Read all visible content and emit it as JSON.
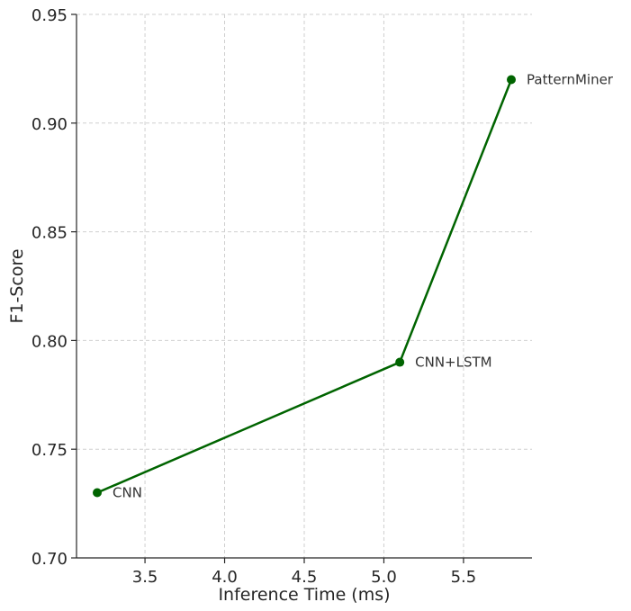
{
  "chart_data": {
    "type": "line",
    "xlabel": "Inference Time (ms)",
    "ylabel": "F1-Score",
    "xlim": [
      3.07,
      5.93
    ],
    "ylim": [
      0.7,
      0.95
    ],
    "xticks": [
      3.5,
      4.0,
      4.5,
      5.0,
      5.5
    ],
    "yticks": [
      0.7,
      0.75,
      0.8,
      0.85,
      0.9,
      0.95
    ],
    "xtick_labels": [
      "3.5",
      "4.0",
      "4.5",
      "5.0",
      "5.5"
    ],
    "ytick_labels": [
      "0.70",
      "0.75",
      "0.80",
      "0.85",
      "0.90",
      "0.95"
    ],
    "grid": true,
    "series": [
      {
        "color": "#006400",
        "points": [
          {
            "label": "CNN",
            "x": 3.2,
            "y": 0.73
          },
          {
            "label": "CNN+LSTM",
            "x": 5.1,
            "y": 0.79
          },
          {
            "label": "PatternMiner",
            "x": 5.8,
            "y": 0.92
          }
        ]
      }
    ]
  }
}
